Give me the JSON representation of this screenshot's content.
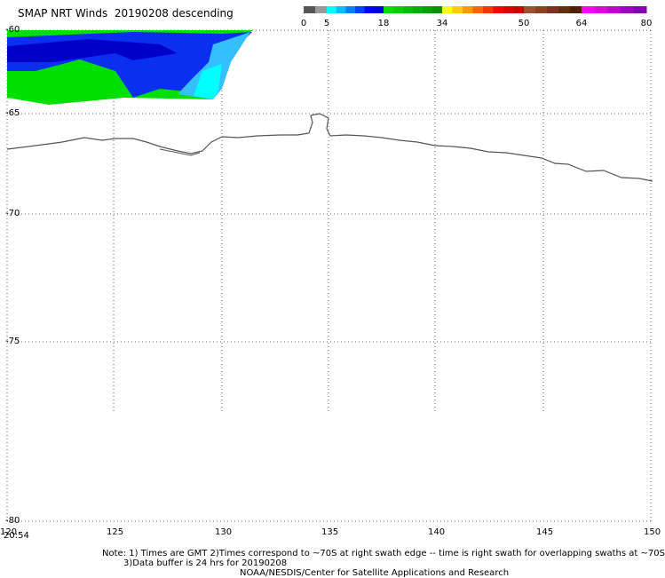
{
  "title": "SMAP NRT Winds  20190208 descending",
  "colorbar": {
    "ticks": [
      "0",
      "5",
      "18",
      "34",
      "50",
      "64",
      "80"
    ],
    "segments": [
      [
        "#555555",
        "#555555",
        "#999999",
        "#999999"
      ],
      [
        "#00ffff",
        "#00c0ff",
        "#0080ff",
        "#0040ff",
        "#0000ff",
        "#0000e0"
      ],
      [
        "#00e000",
        "#00d000",
        "#00c000",
        "#00b000",
        "#00a000",
        "#009000"
      ],
      [
        "#ffff00",
        "#ffcc00",
        "#ff9900",
        "#ff6600",
        "#ff3300",
        "#ff0000",
        "#e00000",
        "#cc0000"
      ],
      [
        "#a05030",
        "#904020",
        "#803020",
        "#603010",
        "#502000"
      ],
      [
        "#ff00ff",
        "#e000e0",
        "#c000d0",
        "#a000c0",
        "#8000b0"
      ]
    ]
  },
  "axes": {
    "lat_labels": [
      "-60",
      "-65",
      "-70",
      "-75",
      "-80"
    ],
    "lon_labels": [
      "120",
      "125",
      "130",
      "135",
      "140",
      "145",
      "150"
    ]
  },
  "time_label": "20:54",
  "notes": {
    "line1": "Note: 1) Times are GMT 2)Times correspond to ~70S at right swath edge -- time is right swath for overlapping swaths at ~70S",
    "line2": "3)Data buffer is 24 hrs for 20190208",
    "line3": "NOAA/NESDIS/Center for Satellite Applications and Research"
  }
}
